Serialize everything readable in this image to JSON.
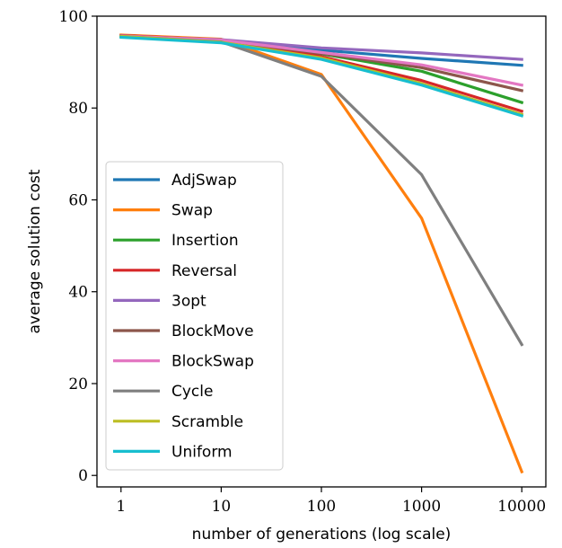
{
  "chart_data": {
    "type": "line",
    "title": "",
    "xlabel": "number of generations (log scale)",
    "ylabel": "average solution cost",
    "xscale": "log",
    "x": [
      1,
      10,
      100,
      1000,
      10000
    ],
    "x_tick_labels": [
      "1",
      "10",
      "100",
      "1000",
      "10000"
    ],
    "ylim": [
      -2.5,
      100
    ],
    "y_ticks": [
      0,
      20,
      40,
      60,
      80,
      100
    ],
    "y_tick_labels": [
      "0",
      "20",
      "40",
      "60",
      "80",
      "100"
    ],
    "grid": false,
    "legend_position": "lower-left",
    "series": [
      {
        "name": "AdjSwap",
        "color": "#1f77b4",
        "values": [
          95.6,
          94.8,
          92.6,
          90.8,
          89.3
        ]
      },
      {
        "name": "Swap",
        "color": "#ff7f0e",
        "values": [
          95.9,
          95.0,
          87.3,
          56.0,
          0.8
        ]
      },
      {
        "name": "Insertion",
        "color": "#2ca02c",
        "values": [
          95.7,
          94.6,
          91.8,
          88.0,
          81.2
        ]
      },
      {
        "name": "Reversal",
        "color": "#d62728",
        "values": [
          95.8,
          94.8,
          91.2,
          86.0,
          79.3
        ]
      },
      {
        "name": "3opt",
        "color": "#9467bd",
        "values": [
          95.6,
          94.9,
          93.1,
          92.0,
          90.6
        ]
      },
      {
        "name": "BlockMove",
        "color": "#8c564b",
        "values": [
          95.7,
          94.7,
          91.9,
          88.8,
          83.8
        ]
      },
      {
        "name": "BlockSwap",
        "color": "#e377c2",
        "values": [
          95.7,
          94.8,
          92.1,
          89.4,
          85.0
        ]
      },
      {
        "name": "Cycle",
        "color": "#7f7f7f",
        "values": [
          95.6,
          94.4,
          86.9,
          65.5,
          28.5
        ]
      },
      {
        "name": "Scramble",
        "color": "#bcbd22",
        "values": [
          95.6,
          94.3,
          90.9,
          85.3,
          78.6
        ]
      },
      {
        "name": "Uniform",
        "color": "#17becf",
        "values": [
          95.4,
          94.2,
          90.6,
          85.0,
          78.3
        ]
      }
    ]
  }
}
